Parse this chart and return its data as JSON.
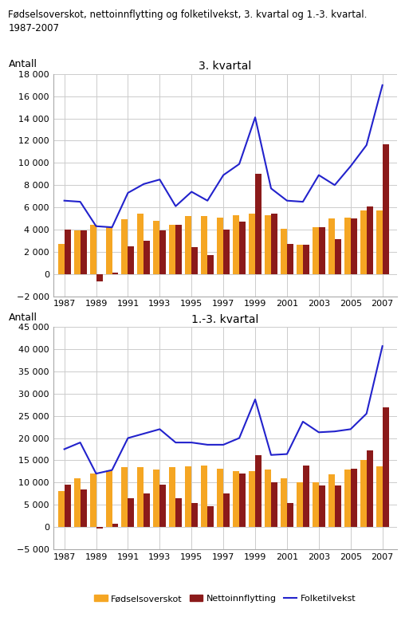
{
  "title_main": "Fødselsoverskot, nettoinnflytting og folketilvekst, 3. kvartal og 1.-3. kvartal.\n1987-2007",
  "years": [
    1987,
    1988,
    1989,
    1990,
    1991,
    1992,
    1993,
    1994,
    1995,
    1996,
    1997,
    1998,
    1999,
    2000,
    2001,
    2002,
    2003,
    2004,
    2005,
    2006,
    2007
  ],
  "q3_fodsels": [
    2700,
    3900,
    4400,
    4300,
    4900,
    5400,
    4800,
    4400,
    5200,
    5200,
    5100,
    5300,
    5400,
    5300,
    4100,
    2600,
    4200,
    5000,
    5100,
    5700,
    5700
  ],
  "q3_netto": [
    4000,
    3900,
    -700,
    100,
    2500,
    3000,
    3900,
    4400,
    2400,
    1700,
    4000,
    4700,
    9000,
    5400,
    2700,
    2600,
    4200,
    3100,
    5000,
    6100,
    11700
  ],
  "q3_folke": [
    6600,
    6500,
    4300,
    4200,
    7300,
    8100,
    8500,
    6100,
    7400,
    6600,
    8900,
    9900,
    14100,
    7700,
    6600,
    6500,
    8900,
    8000,
    9700,
    11600,
    17000
  ],
  "q13_fodsels": [
    8000,
    11000,
    12000,
    12800,
    13500,
    13500,
    13000,
    13500,
    13700,
    13800,
    13100,
    12500,
    12500,
    13000,
    11000,
    10000,
    10000,
    11800,
    13000,
    15000,
    13700
  ],
  "q13_netto": [
    9500,
    8500,
    -300,
    800,
    6500,
    7500,
    9500,
    6400,
    5400,
    4700,
    7500,
    12000,
    16200,
    10000,
    5300,
    13800,
    9400,
    9300,
    13100,
    17200,
    27000
  ],
  "q13_folke": [
    17500,
    19000,
    12000,
    12800,
    20000,
    21000,
    22000,
    19000,
    19000,
    18500,
    18500,
    20000,
    28700,
    16200,
    16400,
    23700,
    21300,
    21500,
    22000,
    25500,
    40700
  ],
  "bar_color_fodsels": "#F5A623",
  "bar_color_netto": "#8B1A1A",
  "line_color": "#2222CC",
  "antall_label": "Antall",
  "title_q3": "3. kvartal",
  "title_q13": "1.-3. kvartal",
  "legend_fodsels": "Fødselsoverskot",
  "legend_netto": "Nettoinnflytting",
  "legend_folke": "Folketilvekst",
  "q3_ylim": [
    -2000,
    18000
  ],
  "q13_ylim": [
    -5000,
    45000
  ],
  "q3_yticks": [
    -2000,
    0,
    2000,
    4000,
    6000,
    8000,
    10000,
    12000,
    14000,
    16000,
    18000
  ],
  "q13_yticks": [
    -5000,
    0,
    5000,
    10000,
    15000,
    20000,
    25000,
    30000,
    35000,
    40000,
    45000
  ],
  "background_color": "#ffffff",
  "grid_color": "#cccccc",
  "xticks": [
    1987,
    1989,
    1991,
    1993,
    1995,
    1997,
    1999,
    2001,
    2003,
    2005,
    2007
  ]
}
